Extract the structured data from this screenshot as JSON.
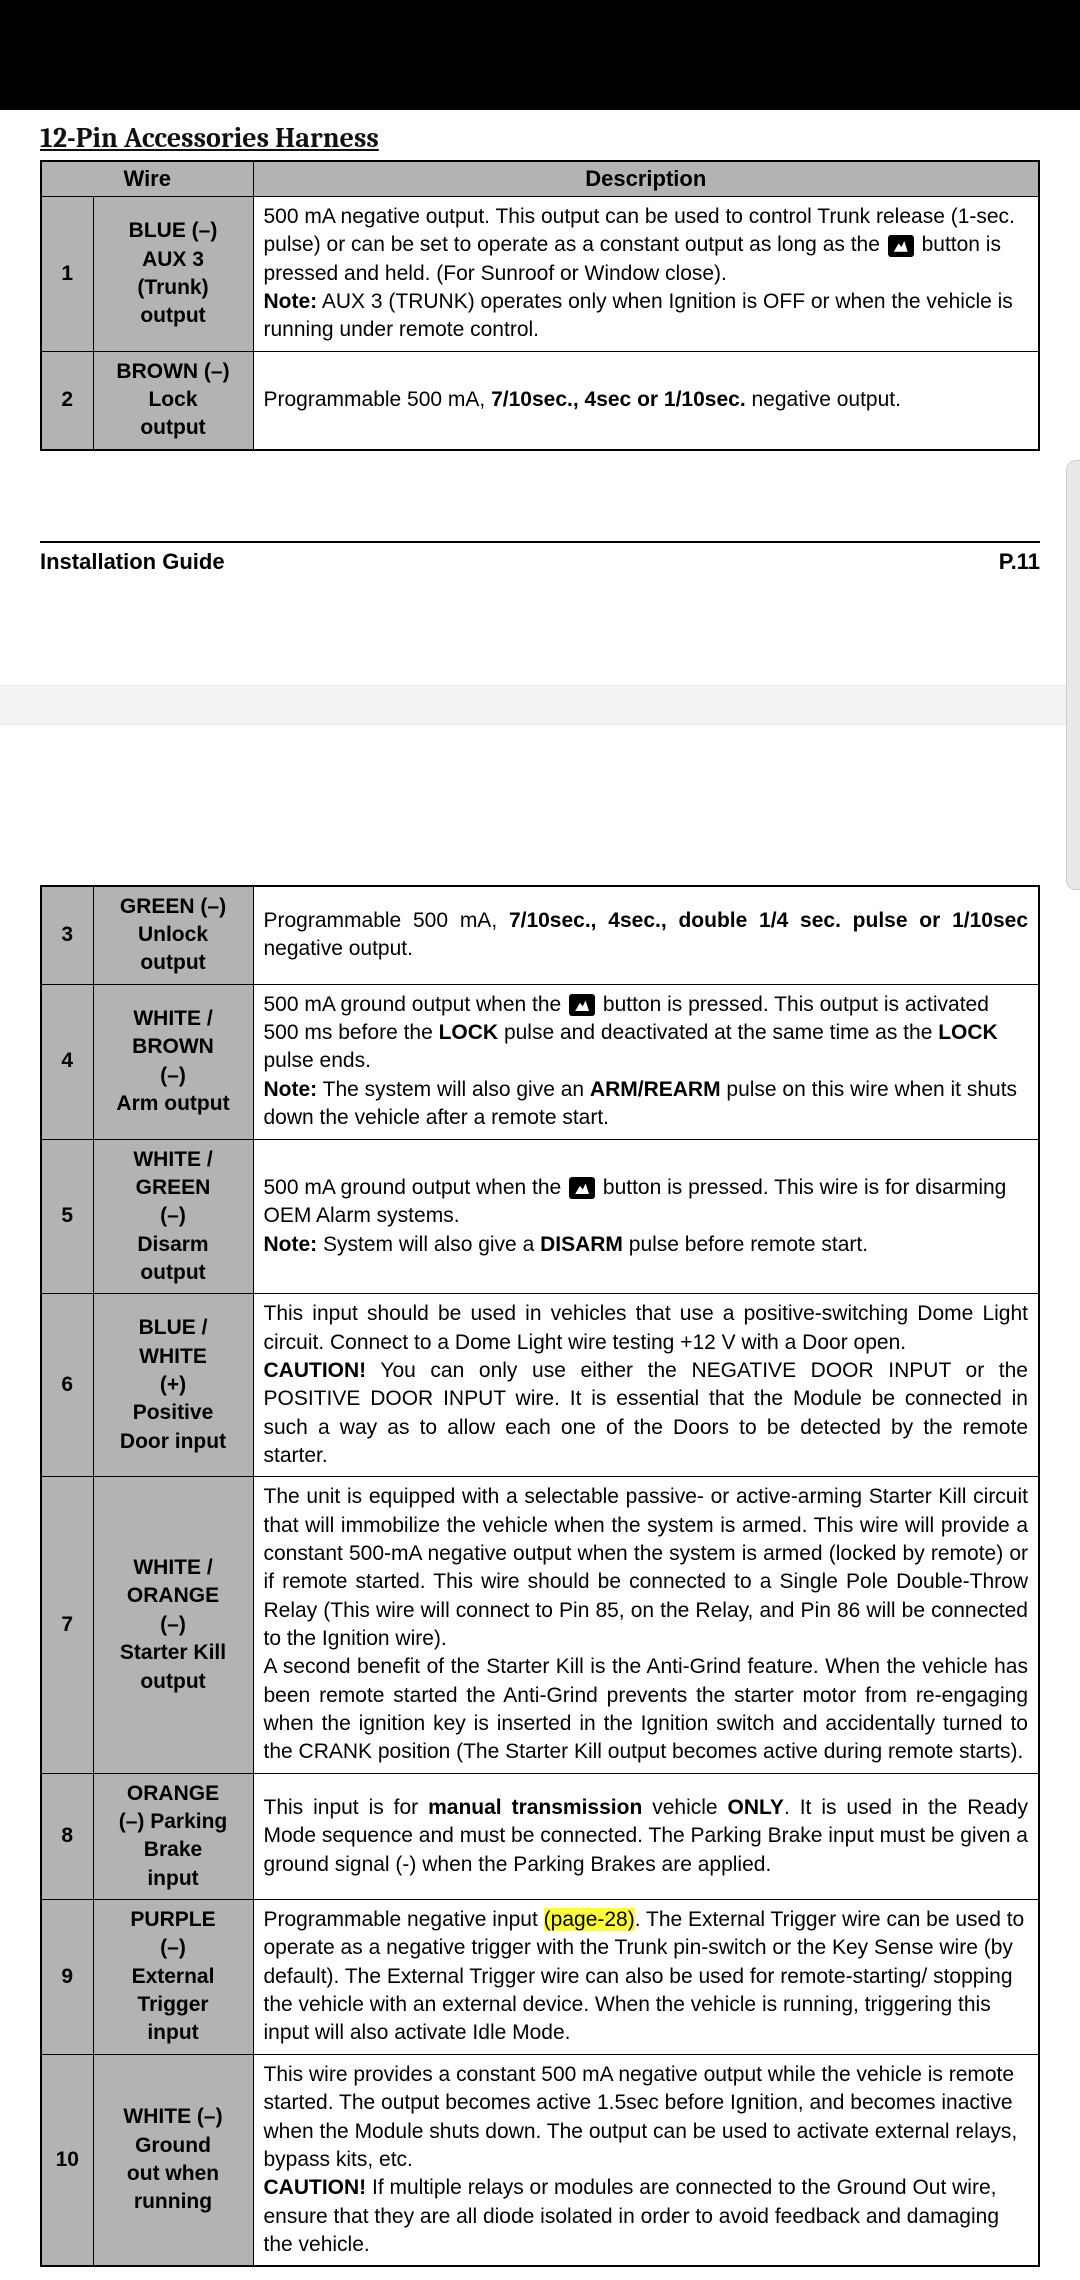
{
  "top": {
    "section_title": "12-Pin Accessories Harness",
    "headers": {
      "wire": "Wire",
      "desc": "Description"
    },
    "rows": [
      {
        "pin": "1",
        "wire": "BLUE (–)\nAUX 3\n(Trunk)\noutput",
        "desc_pre": "500 mA negative output. This output can be used to control Trunk release (1-sec. pulse) or can be set to operate as a constant output as long as the ",
        "desc_post": " button is pressed and held. (For Sunroof or Window close).",
        "note_label": "Note:",
        "note": " AUX 3 (TRUNK) operates only when Ignition is OFF or when the vehicle is running under remote control."
      },
      {
        "pin": "2",
        "wire": "BROWN (–)\nLock\noutput",
        "desc_a": "Programmable 500 mA, ",
        "desc_b": "7/10sec., 4sec or 1/10sec.",
        "desc_c": " negative output."
      }
    ],
    "footer_left": "Installation Guide",
    "footer_right": "P.11"
  },
  "bottom": {
    "rows": [
      {
        "pin": "3",
        "wire": "GREEN (–)\nUnlock\noutput",
        "d1": "Programmable 500 mA, ",
        "d2": "7/10sec., 4sec., double 1/4 sec. pulse or 1/10sec",
        "d3": " negative output."
      },
      {
        "pin": "4",
        "wire": "WHITE /\nBROWN\n(–)\nArm output",
        "a": "500 mA ground output when the ",
        "b": " button is pressed. This output is activated 500 ms before the ",
        "c": "LOCK",
        "d": " pulse and deactivated at the same time as the ",
        "e": "LOCK",
        "f": " pulse ends.",
        "note_label": "Note:",
        "note_a": " The system will also give an ",
        "note_b": "ARM/REARM",
        "note_c": " pulse on this wire when it shuts down the vehicle after a remote start."
      },
      {
        "pin": "5",
        "wire": "WHITE /\nGREEN\n(–)\nDisarm\noutput",
        "a": "500 mA ground output when the ",
        "b": " button is pressed. This wire is for disarming OEM Alarm systems.",
        "note_label": "Note:",
        "note_a": " System will also give a ",
        "note_b": "DISARM",
        "note_c": " pulse before remote start."
      },
      {
        "pin": "6",
        "wire": "BLUE /\nWHITE\n(+)\nPositive\nDoor input",
        "a": "This input should be used in vehicles that use a positive-switching Dome Light circuit. Connect to a Dome Light wire testing +12 V with a Door open.",
        "c_label": "CAUTION!",
        "c": " You can only use either the NEGATIVE DOOR INPUT or the POSITIVE DOOR INPUT wire. It is essential that the Module be connected in such a way as to allow each one of the Doors to be detected by the remote starter."
      },
      {
        "pin": "7",
        "wire": "WHITE /\nORANGE\n(–)\nStarter Kill\noutput",
        "a": "The unit is equipped with a selectable passive- or active-arming Starter Kill circuit that will immobilize the vehicle when the system is armed. This wire will provide a constant 500-mA negative output when the system is armed (locked by remote) or if remote started. This wire should be connected to a Single Pole Double-Throw Relay (This wire will connect to Pin 85, on the Relay, and Pin 86 will be connected to the Ignition wire).",
        "b": "A second benefit of the Starter Kill is the Anti-Grind feature. When the vehicle has been remote started the Anti-Grind prevents the starter motor from re-engaging when the ignition key is inserted in the Ignition switch and accidentally turned to the CRANK position (The Starter Kill output becomes active during remote starts)."
      },
      {
        "pin": "8",
        "wire": "ORANGE\n(–) Parking\nBrake\ninput",
        "a": "This input is for ",
        "b": "manual transmission",
        "c": " vehicle ",
        "d": "ONLY",
        "e": ". It is used in the Ready Mode sequence and must be connected. The Parking Brake input must be given a ground signal (-) when the Parking Brakes are applied."
      },
      {
        "pin": "9",
        "wire": "PURPLE\n(–)\nExternal\nTrigger\ninput",
        "a": "Programmable negative input ",
        "hl": "(page-28)",
        "b": ". The External Trigger wire can be used to operate as a negative trigger with the Trunk pin-switch or the Key Sense wire (by default). The External Trigger wire can also be used for remote-starting/ stopping the vehicle with an external device. When the vehicle is running, triggering this input will also activate Idle Mode."
      },
      {
        "pin": "10",
        "wire": "WHITE (–)\nGround\nout when\nrunning",
        "a": "This wire provides a constant 500 mA negative output while the vehicle is remote started. The output becomes active 1.5sec before Ignition, and becomes inactive when the Module shuts down. The output can be used to activate external relays, bypass kits, etc.",
        "c_label": "CAUTION!",
        "c": " If multiple relays or modules are connected to the Ground Out wire, ensure that they are all diode isolated in order to avoid feedback and damaging the vehicle."
      }
    ]
  }
}
